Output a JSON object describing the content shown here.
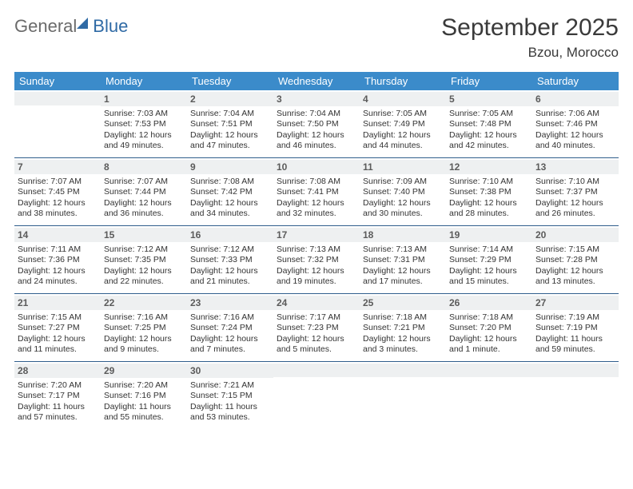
{
  "logo": {
    "word1": "General",
    "word2": "Blue"
  },
  "title": "September 2025",
  "location": "Bzou, Morocco",
  "colors": {
    "header_bar": "#3b8bca",
    "week_divider": "#2f5e8c",
    "daynum_bg": "#eef0f1",
    "text": "#333333",
    "title_text": "#3a3a3a",
    "logo_gray": "#6b6b6b",
    "logo_blue": "#2f6aa5"
  },
  "dow": [
    "Sunday",
    "Monday",
    "Tuesday",
    "Wednesday",
    "Thursday",
    "Friday",
    "Saturday"
  ],
  "weeks": [
    [
      {
        "n": "",
        "sr": "",
        "ss": "",
        "dl": ""
      },
      {
        "n": "1",
        "sr": "Sunrise: 7:03 AM",
        "ss": "Sunset: 7:53 PM",
        "dl": "Daylight: 12 hours and 49 minutes."
      },
      {
        "n": "2",
        "sr": "Sunrise: 7:04 AM",
        "ss": "Sunset: 7:51 PM",
        "dl": "Daylight: 12 hours and 47 minutes."
      },
      {
        "n": "3",
        "sr": "Sunrise: 7:04 AM",
        "ss": "Sunset: 7:50 PM",
        "dl": "Daylight: 12 hours and 46 minutes."
      },
      {
        "n": "4",
        "sr": "Sunrise: 7:05 AM",
        "ss": "Sunset: 7:49 PM",
        "dl": "Daylight: 12 hours and 44 minutes."
      },
      {
        "n": "5",
        "sr": "Sunrise: 7:05 AM",
        "ss": "Sunset: 7:48 PM",
        "dl": "Daylight: 12 hours and 42 minutes."
      },
      {
        "n": "6",
        "sr": "Sunrise: 7:06 AM",
        "ss": "Sunset: 7:46 PM",
        "dl": "Daylight: 12 hours and 40 minutes."
      }
    ],
    [
      {
        "n": "7",
        "sr": "Sunrise: 7:07 AM",
        "ss": "Sunset: 7:45 PM",
        "dl": "Daylight: 12 hours and 38 minutes."
      },
      {
        "n": "8",
        "sr": "Sunrise: 7:07 AM",
        "ss": "Sunset: 7:44 PM",
        "dl": "Daylight: 12 hours and 36 minutes."
      },
      {
        "n": "9",
        "sr": "Sunrise: 7:08 AM",
        "ss": "Sunset: 7:42 PM",
        "dl": "Daylight: 12 hours and 34 minutes."
      },
      {
        "n": "10",
        "sr": "Sunrise: 7:08 AM",
        "ss": "Sunset: 7:41 PM",
        "dl": "Daylight: 12 hours and 32 minutes."
      },
      {
        "n": "11",
        "sr": "Sunrise: 7:09 AM",
        "ss": "Sunset: 7:40 PM",
        "dl": "Daylight: 12 hours and 30 minutes."
      },
      {
        "n": "12",
        "sr": "Sunrise: 7:10 AM",
        "ss": "Sunset: 7:38 PM",
        "dl": "Daylight: 12 hours and 28 minutes."
      },
      {
        "n": "13",
        "sr": "Sunrise: 7:10 AM",
        "ss": "Sunset: 7:37 PM",
        "dl": "Daylight: 12 hours and 26 minutes."
      }
    ],
    [
      {
        "n": "14",
        "sr": "Sunrise: 7:11 AM",
        "ss": "Sunset: 7:36 PM",
        "dl": "Daylight: 12 hours and 24 minutes."
      },
      {
        "n": "15",
        "sr": "Sunrise: 7:12 AM",
        "ss": "Sunset: 7:35 PM",
        "dl": "Daylight: 12 hours and 22 minutes."
      },
      {
        "n": "16",
        "sr": "Sunrise: 7:12 AM",
        "ss": "Sunset: 7:33 PM",
        "dl": "Daylight: 12 hours and 21 minutes."
      },
      {
        "n": "17",
        "sr": "Sunrise: 7:13 AM",
        "ss": "Sunset: 7:32 PM",
        "dl": "Daylight: 12 hours and 19 minutes."
      },
      {
        "n": "18",
        "sr": "Sunrise: 7:13 AM",
        "ss": "Sunset: 7:31 PM",
        "dl": "Daylight: 12 hours and 17 minutes."
      },
      {
        "n": "19",
        "sr": "Sunrise: 7:14 AM",
        "ss": "Sunset: 7:29 PM",
        "dl": "Daylight: 12 hours and 15 minutes."
      },
      {
        "n": "20",
        "sr": "Sunrise: 7:15 AM",
        "ss": "Sunset: 7:28 PM",
        "dl": "Daylight: 12 hours and 13 minutes."
      }
    ],
    [
      {
        "n": "21",
        "sr": "Sunrise: 7:15 AM",
        "ss": "Sunset: 7:27 PM",
        "dl": "Daylight: 12 hours and 11 minutes."
      },
      {
        "n": "22",
        "sr": "Sunrise: 7:16 AM",
        "ss": "Sunset: 7:25 PM",
        "dl": "Daylight: 12 hours and 9 minutes."
      },
      {
        "n": "23",
        "sr": "Sunrise: 7:16 AM",
        "ss": "Sunset: 7:24 PM",
        "dl": "Daylight: 12 hours and 7 minutes."
      },
      {
        "n": "24",
        "sr": "Sunrise: 7:17 AM",
        "ss": "Sunset: 7:23 PM",
        "dl": "Daylight: 12 hours and 5 minutes."
      },
      {
        "n": "25",
        "sr": "Sunrise: 7:18 AM",
        "ss": "Sunset: 7:21 PM",
        "dl": "Daylight: 12 hours and 3 minutes."
      },
      {
        "n": "26",
        "sr": "Sunrise: 7:18 AM",
        "ss": "Sunset: 7:20 PM",
        "dl": "Daylight: 12 hours and 1 minute."
      },
      {
        "n": "27",
        "sr": "Sunrise: 7:19 AM",
        "ss": "Sunset: 7:19 PM",
        "dl": "Daylight: 11 hours and 59 minutes."
      }
    ],
    [
      {
        "n": "28",
        "sr": "Sunrise: 7:20 AM",
        "ss": "Sunset: 7:17 PM",
        "dl": "Daylight: 11 hours and 57 minutes."
      },
      {
        "n": "29",
        "sr": "Sunrise: 7:20 AM",
        "ss": "Sunset: 7:16 PM",
        "dl": "Daylight: 11 hours and 55 minutes."
      },
      {
        "n": "30",
        "sr": "Sunrise: 7:21 AM",
        "ss": "Sunset: 7:15 PM",
        "dl": "Daylight: 11 hours and 53 minutes."
      },
      {
        "n": "",
        "sr": "",
        "ss": "",
        "dl": ""
      },
      {
        "n": "",
        "sr": "",
        "ss": "",
        "dl": ""
      },
      {
        "n": "",
        "sr": "",
        "ss": "",
        "dl": ""
      },
      {
        "n": "",
        "sr": "",
        "ss": "",
        "dl": ""
      }
    ]
  ]
}
